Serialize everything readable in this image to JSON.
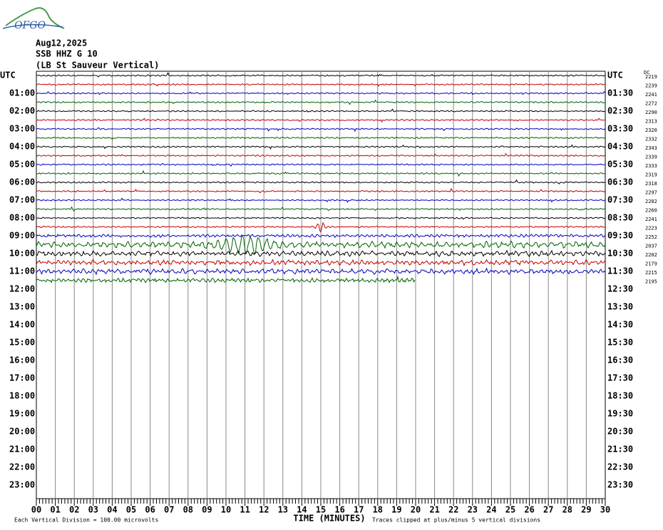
{
  "header": {
    "logo": "OFGO",
    "date": "Aug12,2025",
    "station": "SSB HHZ G 10",
    "description": "(LB St Sauveur Vertical)"
  },
  "left_labels": [
    "UTC",
    "01:00",
    "02:00",
    "03:00",
    "04:00",
    "05:00",
    "06:00",
    "07:00",
    "08:00",
    "09:00",
    "10:00",
    "11:00",
    "12:00",
    "13:00",
    "14:00",
    "15:00",
    "16:00",
    "17:00",
    "18:00",
    "19:00",
    "20:00",
    "21:00",
    "22:00",
    "23:00"
  ],
  "right_labels": [
    "UTC",
    "01:30",
    "02:30",
    "03:30",
    "04:30",
    "05:30",
    "06:30",
    "07:30",
    "08:30",
    "09:30",
    "10:30",
    "11:30",
    "12:30",
    "13:30",
    "14:30",
    "15:30",
    "16:30",
    "17:30",
    "18:30",
    "19:30",
    "20:30",
    "21:30",
    "22:30",
    "23:30"
  ],
  "dc_header": "DC",
  "dc_values": [
    2219,
    2239,
    2241,
    2272,
    2290,
    2313,
    2320,
    2332,
    2343,
    2339,
    2333,
    2319,
    2318,
    2297,
    2282,
    2260,
    2241,
    2223,
    2252,
    2037,
    2202,
    2179,
    2215,
    2195
  ],
  "x_axis": {
    "labels": [
      "00",
      "01",
      "02",
      "03",
      "04",
      "05",
      "06",
      "07",
      "08",
      "09",
      "10",
      "11",
      "12",
      "13",
      "14",
      "15",
      "16",
      "17",
      "18",
      "19",
      "20",
      "21",
      "22",
      "23",
      "24",
      "25",
      "26",
      "27",
      "28",
      "29",
      "30"
    ],
    "title": "TIME (MINUTES)"
  },
  "footer": {
    "scale": "Each Vertical Division =  100.00 microvolts",
    "clip": "Traces clipped at plus/minus 5 vertical divisions"
  }
}
